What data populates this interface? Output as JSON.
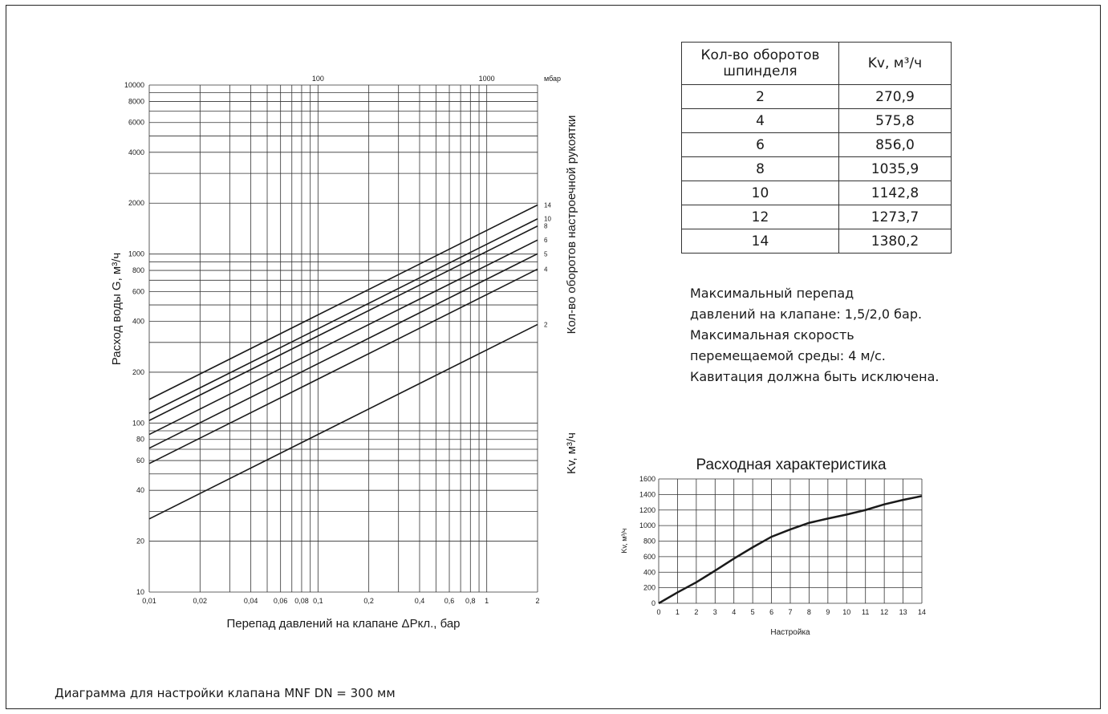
{
  "caption": "Диаграмма для настройки клапана  MNF DN = 300 мм",
  "kv_table": {
    "header": {
      "turns": "Кол-во оборотов шпинделя",
      "kv": "Kv, м³/ч"
    },
    "rows": [
      {
        "turns": "2",
        "kv": "270,9"
      },
      {
        "turns": "4",
        "kv": "575,8"
      },
      {
        "turns": "6",
        "kv": "856,0"
      },
      {
        "turns": "8",
        "kv": "1035,9"
      },
      {
        "turns": "10",
        "kv": "1142,8"
      },
      {
        "turns": "12",
        "kv": "1273,7"
      },
      {
        "turns": "14",
        "kv": "1380,2"
      }
    ]
  },
  "notes": [
    "Максимальный перепад",
    "давлений на клапане: 1,5/2,0 бар.",
    "Максимальная скорость",
    "перемещаемой среды: 4 м/с.",
    "Кавитация должна быть исключена."
  ],
  "chart_data": [
    {
      "type": "line",
      "xscale": "log",
      "yscale": "log",
      "xlim": [
        0.01,
        2
      ],
      "ylim": [
        10,
        10000
      ],
      "xlabel": "Перепад давлений на клапане  ΔPкл.,  бар",
      "ylabel": "Расход воды G, м³/ч",
      "x_top_ticks": [
        "100",
        "1000"
      ],
      "x_top_unit": "мбар",
      "right_label_top": "Кол-во оборотов настроечной рукоятки",
      "right_label_bottom": "Kv, м³/ч",
      "x_ticks": [
        "0,01",
        "0,02",
        "0,04",
        "0,06",
        "0,08",
        "0,1",
        "0,2",
        "0,4",
        "0,6",
        "0,8",
        "1",
        "2"
      ],
      "y_ticks": [
        "10",
        "20",
        "40",
        "60",
        "80",
        "100",
        "200",
        "400",
        "600",
        "800",
        "1000",
        "2000",
        "4000",
        "6000",
        "8000",
        "10000"
      ],
      "grid": true,
      "series": [
        {
          "name": "14",
          "kv": 1380.2
        },
        {
          "name": "10",
          "kv": 1142.8
        },
        {
          "name": "8",
          "kv": 1035.9
        },
        {
          "name": "6",
          "kv": 856.0
        },
        {
          "name": "5",
          "kv": 710
        },
        {
          "name": "4",
          "kv": 575.8
        },
        {
          "name": "2",
          "kv": 270.9
        }
      ]
    },
    {
      "type": "line",
      "title": "Расходная характеристика",
      "xlabel": "Настройка",
      "ylabel": "Kv, м³/ч",
      "xlim": [
        0,
        14
      ],
      "ylim": [
        0,
        1600
      ],
      "x_ticks": [
        "0",
        "1",
        "2",
        "3",
        "4",
        "5",
        "6",
        "7",
        "8",
        "9",
        "10",
        "11",
        "12",
        "13",
        "14"
      ],
      "y_ticks": [
        "0",
        "200",
        "400",
        "600",
        "800",
        "1000",
        "1200",
        "1400",
        "1600"
      ],
      "grid": true,
      "x": [
        0,
        1,
        2,
        3,
        4,
        5,
        6,
        7,
        8,
        9,
        10,
        11,
        12,
        13,
        14
      ],
      "y": [
        0,
        140,
        270,
        420,
        575,
        720,
        856,
        950,
        1035,
        1090,
        1142,
        1200,
        1273,
        1330,
        1380
      ]
    }
  ]
}
